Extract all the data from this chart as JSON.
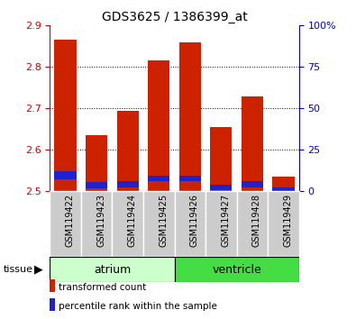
{
  "title": "GDS3625 / 1386399_at",
  "samples": [
    "GSM119422",
    "GSM119423",
    "GSM119424",
    "GSM119425",
    "GSM119426",
    "GSM119427",
    "GSM119428",
    "GSM119429"
  ],
  "red_values": [
    2.865,
    2.635,
    2.695,
    2.815,
    2.86,
    2.655,
    2.73,
    2.535
  ],
  "blue_top": [
    2.548,
    2.522,
    2.524,
    2.538,
    2.538,
    2.515,
    2.524,
    2.51
  ],
  "blue_bottom": [
    2.53,
    2.508,
    2.51,
    2.524,
    2.524,
    2.503,
    2.51,
    2.497
  ],
  "bar_bottom": 2.5,
  "ylim_left": [
    2.5,
    2.9
  ],
  "ylim_right": [
    0,
    100
  ],
  "yticks_left": [
    2.5,
    2.6,
    2.7,
    2.8,
    2.9
  ],
  "yticks_right": [
    0,
    25,
    50,
    75,
    100
  ],
  "right_tick_labels": [
    "0",
    "25",
    "50",
    "75",
    "100%"
  ],
  "left_tick_color": "#cc0000",
  "right_tick_color": "#0000cc",
  "bar_width": 0.7,
  "red_color": "#cc2200",
  "blue_color": "#2222cc",
  "atrium_color": "#ccffcc",
  "ventricle_color": "#44dd44",
  "label_bg_color": "#cccccc",
  "legend_red": "transformed count",
  "legend_blue": "percentile rank within the sample",
  "fig_width": 3.95,
  "fig_height": 3.54
}
